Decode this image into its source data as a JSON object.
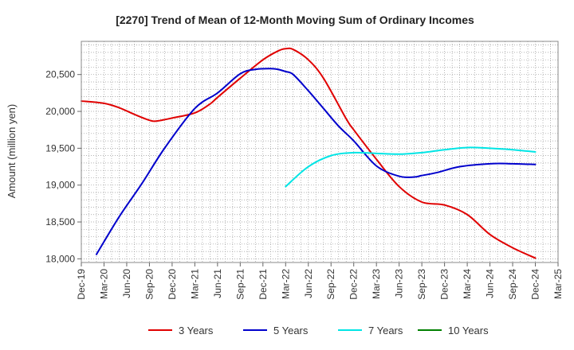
{
  "chart_data": {
    "type": "line",
    "title": "[2270]  Trend of Mean of 12-Month Moving Sum of Ordinary Incomes",
    "xlabel": "",
    "ylabel": "Amount (million yen)",
    "ylim": [
      17950,
      20950
    ],
    "yticks": [
      18000,
      18500,
      19000,
      19500,
      20000,
      20500
    ],
    "ytick_labels": [
      "18,000",
      "18,500",
      "19,000",
      "19,500",
      "20,000",
      "20,500"
    ],
    "xlim": [
      0,
      63
    ],
    "xticks": [
      0,
      3,
      6,
      9,
      12,
      15,
      18,
      21,
      24,
      27,
      30,
      33,
      36,
      39,
      42,
      45,
      48,
      51,
      54,
      57,
      60,
      63
    ],
    "xtick_labels": [
      "Dec-19",
      "Mar-20",
      "Jun-20",
      "Sep-20",
      "Dec-20",
      "Mar-21",
      "Jun-21",
      "Sep-21",
      "Dec-21",
      "Mar-22",
      "Jun-22",
      "Sep-22",
      "Dec-22",
      "Mar-23",
      "Jun-23",
      "Sep-23",
      "Dec-23",
      "Mar-24",
      "Jun-24",
      "Sep-24",
      "Dec-24",
      "Mar-25"
    ],
    "grid": true,
    "legend_position": "bottom",
    "series": [
      {
        "name": "3 Years",
        "color": "#e00000",
        "x": [
          0,
          3,
          5,
          7,
          9,
          10,
          12,
          15,
          17,
          18,
          21,
          24,
          26,
          27,
          28,
          30,
          32,
          35,
          36,
          39,
          42,
          45,
          48,
          51,
          54,
          57,
          60
        ],
        "values": [
          20140,
          20110,
          20050,
          19960,
          19880,
          19870,
          19910,
          19980,
          20100,
          20190,
          20450,
          20700,
          20820,
          20850,
          20840,
          20700,
          20450,
          19900,
          19750,
          19350,
          18980,
          18770,
          18730,
          18600,
          18330,
          18150,
          18010
        ]
      },
      {
        "name": "5 Years",
        "color": "#0000cc",
        "x": [
          2,
          5,
          8,
          11,
          15,
          18,
          21,
          23,
          25,
          26,
          27,
          28,
          30,
          32,
          34,
          36,
          39,
          42,
          44,
          45,
          47,
          50,
          54,
          57,
          60
        ],
        "values": [
          18060,
          18570,
          19020,
          19500,
          20040,
          20250,
          20510,
          20570,
          20580,
          20570,
          20540,
          20500,
          20280,
          20040,
          19800,
          19600,
          19260,
          19120,
          19110,
          19130,
          19170,
          19250,
          19290,
          19290,
          19280
        ]
      },
      {
        "name": "7 Years",
        "color": "#00e5e5",
        "x": [
          27,
          30,
          33,
          36,
          39,
          42,
          45,
          48,
          51,
          54,
          57,
          60
        ],
        "values": [
          18980,
          19250,
          19400,
          19440,
          19430,
          19420,
          19440,
          19480,
          19510,
          19500,
          19480,
          19450
        ]
      },
      {
        "name": "10 Years",
        "color": "#008000",
        "x": [],
        "values": []
      }
    ]
  }
}
